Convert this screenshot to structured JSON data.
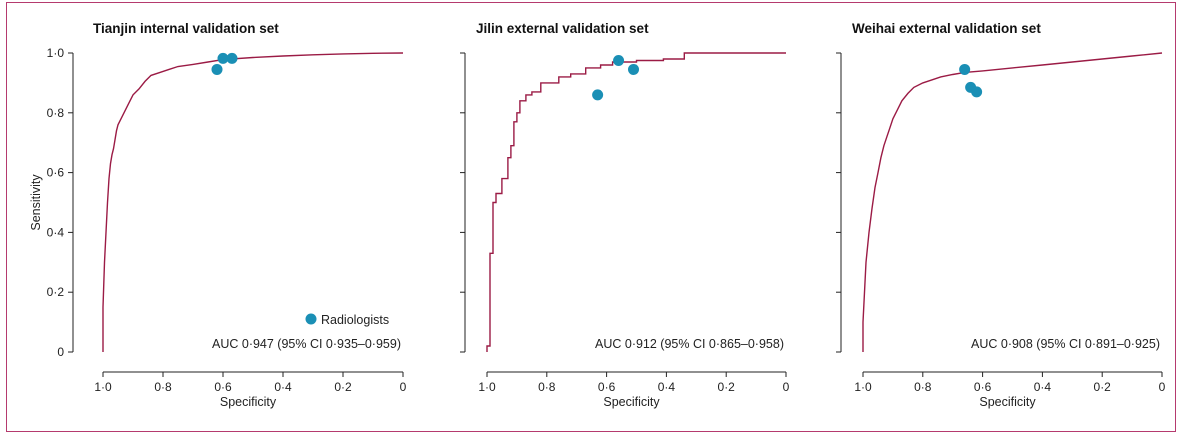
{
  "chart_data": [
    {
      "type": "line",
      "title": "Tianjin internal validation set",
      "xlabel": "Specificity",
      "ylabel": "Sensitivity",
      "xlim": [
        1.0,
        0
      ],
      "ylim": [
        0,
        1.0
      ],
      "x_ticks": [
        "1·0",
        "0·8",
        "0·6",
        "0·4",
        "0·2",
        "0"
      ],
      "y_ticks": [
        "0",
        "0·2",
        "0·4",
        "0·6",
        "0·8",
        "1·0"
      ],
      "auc_text": "AUC 0·947 (95% CI 0·935–0·959)",
      "legend": {
        "label": "Radiologists",
        "position": "bottom-right"
      },
      "roc_curve": [
        [
          1.0,
          0.0
        ],
        [
          1.0,
          0.15
        ],
        [
          0.995,
          0.3
        ],
        [
          0.99,
          0.4
        ],
        [
          0.985,
          0.5
        ],
        [
          0.98,
          0.58
        ],
        [
          0.975,
          0.63
        ],
        [
          0.97,
          0.66
        ],
        [
          0.965,
          0.68
        ],
        [
          0.96,
          0.71
        ],
        [
          0.955,
          0.74
        ],
        [
          0.95,
          0.76
        ],
        [
          0.94,
          0.78
        ],
        [
          0.93,
          0.8
        ],
        [
          0.915,
          0.83
        ],
        [
          0.9,
          0.86
        ],
        [
          0.88,
          0.88
        ],
        [
          0.86,
          0.905
        ],
        [
          0.84,
          0.925
        ],
        [
          0.81,
          0.935
        ],
        [
          0.78,
          0.945
        ],
        [
          0.75,
          0.955
        ],
        [
          0.7,
          0.962
        ],
        [
          0.65,
          0.97
        ],
        [
          0.6,
          0.978
        ],
        [
          0.5,
          0.985
        ],
        [
          0.4,
          0.99
        ],
        [
          0.3,
          0.994
        ],
        [
          0.2,
          0.997
        ],
        [
          0.1,
          0.999
        ],
        [
          0.0,
          1.0
        ]
      ],
      "radiologists": [
        [
          0.62,
          0.945
        ],
        [
          0.6,
          0.982
        ],
        [
          0.57,
          0.982
        ]
      ]
    },
    {
      "type": "line",
      "title": "Jilin external validation set",
      "xlabel": "Specificity",
      "ylabel": "",
      "xlim": [
        1.0,
        0
      ],
      "ylim": [
        0,
        1.0
      ],
      "x_ticks": [
        "1·0",
        "0·8",
        "0·6",
        "0·4",
        "0·2",
        "0"
      ],
      "y_ticks": [],
      "auc_text": "AUC 0·912 (95% CI 0·865–0·958)",
      "roc_curve": [
        [
          1.0,
          0.0
        ],
        [
          1.0,
          0.02
        ],
        [
          0.99,
          0.02
        ],
        [
          0.99,
          0.33
        ],
        [
          0.98,
          0.33
        ],
        [
          0.98,
          0.5
        ],
        [
          0.97,
          0.5
        ],
        [
          0.97,
          0.53
        ],
        [
          0.95,
          0.53
        ],
        [
          0.95,
          0.58
        ],
        [
          0.93,
          0.58
        ],
        [
          0.93,
          0.65
        ],
        [
          0.92,
          0.65
        ],
        [
          0.92,
          0.69
        ],
        [
          0.91,
          0.69
        ],
        [
          0.91,
          0.77
        ],
        [
          0.9,
          0.77
        ],
        [
          0.9,
          0.8
        ],
        [
          0.89,
          0.8
        ],
        [
          0.89,
          0.84
        ],
        [
          0.87,
          0.84
        ],
        [
          0.87,
          0.86
        ],
        [
          0.85,
          0.86
        ],
        [
          0.85,
          0.87
        ],
        [
          0.82,
          0.87
        ],
        [
          0.82,
          0.9
        ],
        [
          0.76,
          0.9
        ],
        [
          0.76,
          0.92
        ],
        [
          0.72,
          0.92
        ],
        [
          0.72,
          0.93
        ],
        [
          0.67,
          0.93
        ],
        [
          0.67,
          0.95
        ],
        [
          0.62,
          0.95
        ],
        [
          0.62,
          0.96
        ],
        [
          0.58,
          0.96
        ],
        [
          0.58,
          0.97
        ],
        [
          0.5,
          0.97
        ],
        [
          0.5,
          0.975
        ],
        [
          0.41,
          0.975
        ],
        [
          0.41,
          0.98
        ],
        [
          0.34,
          0.98
        ],
        [
          0.34,
          1.0
        ],
        [
          0.0,
          1.0
        ]
      ],
      "radiologists": [
        [
          0.63,
          0.86
        ],
        [
          0.56,
          0.975
        ],
        [
          0.51,
          0.945
        ]
      ]
    },
    {
      "type": "line",
      "title": "Weihai external validation set",
      "xlabel": "Specificity",
      "ylabel": "",
      "xlim": [
        1.0,
        0
      ],
      "ylim": [
        0,
        1.0
      ],
      "x_ticks": [
        "1·0",
        "0·8",
        "0·6",
        "0·4",
        "0·2",
        "0"
      ],
      "y_ticks": [],
      "auc_text": "AUC 0·908 (95% CI 0·891–0·925)",
      "roc_curve": [
        [
          1.0,
          0.0
        ],
        [
          1.0,
          0.1
        ],
        [
          0.995,
          0.2
        ],
        [
          0.99,
          0.3
        ],
        [
          0.98,
          0.4
        ],
        [
          0.97,
          0.48
        ],
        [
          0.96,
          0.55
        ],
        [
          0.95,
          0.6
        ],
        [
          0.94,
          0.65
        ],
        [
          0.93,
          0.69
        ],
        [
          0.92,
          0.72
        ],
        [
          0.91,
          0.75
        ],
        [
          0.9,
          0.78
        ],
        [
          0.885,
          0.81
        ],
        [
          0.87,
          0.84
        ],
        [
          0.85,
          0.865
        ],
        [
          0.83,
          0.885
        ],
        [
          0.8,
          0.9
        ],
        [
          0.77,
          0.91
        ],
        [
          0.74,
          0.92
        ],
        [
          0.7,
          0.928
        ],
        [
          0.66,
          0.935
        ],
        [
          0.6,
          0.94
        ],
        [
          0.55,
          0.945
        ],
        [
          0.5,
          0.95
        ],
        [
          0.4,
          0.96
        ],
        [
          0.3,
          0.97
        ],
        [
          0.2,
          0.98
        ],
        [
          0.1,
          0.99
        ],
        [
          0.0,
          1.0
        ]
      ],
      "radiologists": [
        [
          0.66,
          0.945
        ],
        [
          0.64,
          0.885
        ],
        [
          0.62,
          0.87
        ]
      ]
    }
  ]
}
